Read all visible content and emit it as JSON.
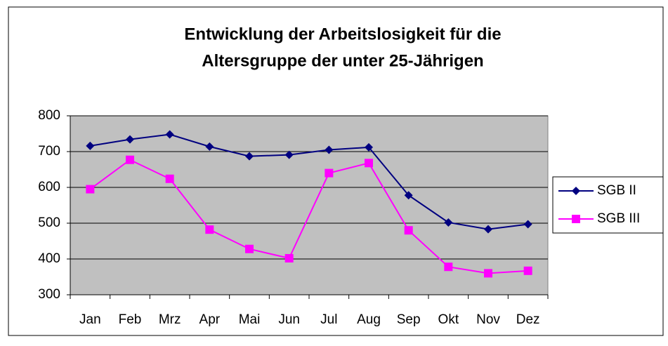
{
  "chart_data": {
    "type": "line",
    "title": [
      "Entwicklung der Arbeitslosigkeit für die",
      "Altersgruppe der unter 25-Jährigen"
    ],
    "categories": [
      "Jan",
      "Feb",
      "Mrz",
      "Apr",
      "Mai",
      "Jun",
      "Jul",
      "Aug",
      "Sep",
      "Okt",
      "Nov",
      "Dez"
    ],
    "series": [
      {
        "name": "SGB II",
        "color": "#000080",
        "marker": "diamond",
        "values": [
          716,
          734,
          748,
          714,
          687,
          691,
          705,
          712,
          578,
          502,
          483,
          497
        ]
      },
      {
        "name": "SGB III",
        "color": "#ff00ff",
        "marker": "square",
        "values": [
          595,
          677,
          624,
          482,
          428,
          402,
          640,
          668,
          480,
          378,
          360,
          367
        ]
      }
    ],
    "ylim": [
      300,
      800
    ],
    "yticks": [
      300,
      400,
      500,
      600,
      700,
      800
    ],
    "grid": true,
    "legend": "right"
  }
}
